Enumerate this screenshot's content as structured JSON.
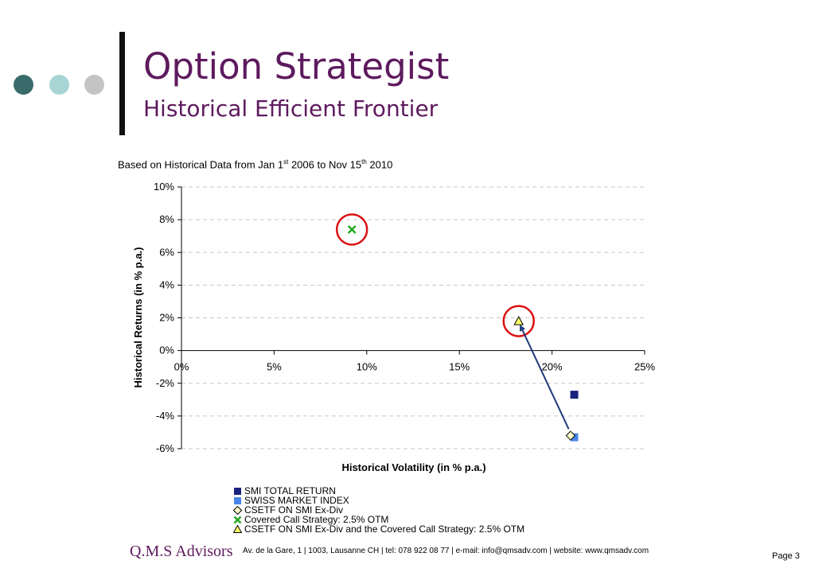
{
  "colors": {
    "title": "#5e1a5e",
    "dots": [
      "#3a6b6b",
      "#a8d4d4",
      "#c4c4c4"
    ],
    "accent_line": "#111111",
    "brand": "#5e1a5e"
  },
  "header": {
    "title": "Option Strategist",
    "subtitle": "Historical Efficient Frontier"
  },
  "basis": {
    "pre": "Based on Historical Data from Jan 1",
    "sup1": "st",
    "mid": " 2006 to Nov 15",
    "sup2": "th",
    "post": " 2010"
  },
  "chart_data": {
    "type": "scatter",
    "xlabel": "Historical Volatility (in % p.a.)",
    "ylabel": "Historical Returns (in % p.a.)",
    "xlim": [
      0,
      25
    ],
    "ylim": [
      -6,
      10
    ],
    "x_ticks": [
      0,
      5,
      10,
      15,
      20,
      25
    ],
    "y_ticks": [
      -6,
      -4,
      -2,
      0,
      2,
      4,
      6,
      8,
      10
    ],
    "x_tick_labels": [
      "0%",
      "5%",
      "10%",
      "15%",
      "20%",
      "25%"
    ],
    "y_tick_labels": [
      "-6%",
      "-4%",
      "-2%",
      "0%",
      "2%",
      "4%",
      "6%",
      "8%",
      "10%"
    ],
    "grid": "horizontal dashed",
    "legend_position": "bottom",
    "series": [
      {
        "name": "SMI TOTAL RETURN",
        "marker": "square",
        "color": "#1a237e",
        "x": 21.2,
        "y": -2.7
      },
      {
        "name": "SWISS MARKET INDEX",
        "marker": "square",
        "color": "#4a86e8",
        "x": 21.2,
        "y": -5.3
      },
      {
        "name": "CSETF ON SMI Ex-Div",
        "marker": "diamond",
        "color": "#ffffcc",
        "x": 21.0,
        "y": -5.2
      },
      {
        "name": "Covered Call Strategy: 2.5% OTM",
        "marker": "x",
        "color": "#22aa22",
        "x": 9.2,
        "y": 7.4
      },
      {
        "name": "CSETF ON SMI Ex-Div and the Covered Call Strategy: 2.5% OTM",
        "marker": "triangle",
        "color": "#ffff66",
        "x": 18.2,
        "y": 1.8
      }
    ],
    "annotations": {
      "circles": [
        {
          "x": 9.2,
          "y": 7.4
        },
        {
          "x": 18.2,
          "y": 1.8
        }
      ],
      "arrow": {
        "from": [
          20.9,
          -4.8
        ],
        "to": [
          18.3,
          1.5
        ],
        "color": "#1f3b7a"
      },
      "circle_color": "#dd1111"
    }
  },
  "footer": {
    "brand": "Q.M.S Advisors",
    "contact": "Av. de la Gare, 1 | 1003, Lausanne CH | tel: 078 922 08 77 | e-mail: info@qmsadv.com | website: www.qmsadv.com",
    "page": "Page 3"
  }
}
